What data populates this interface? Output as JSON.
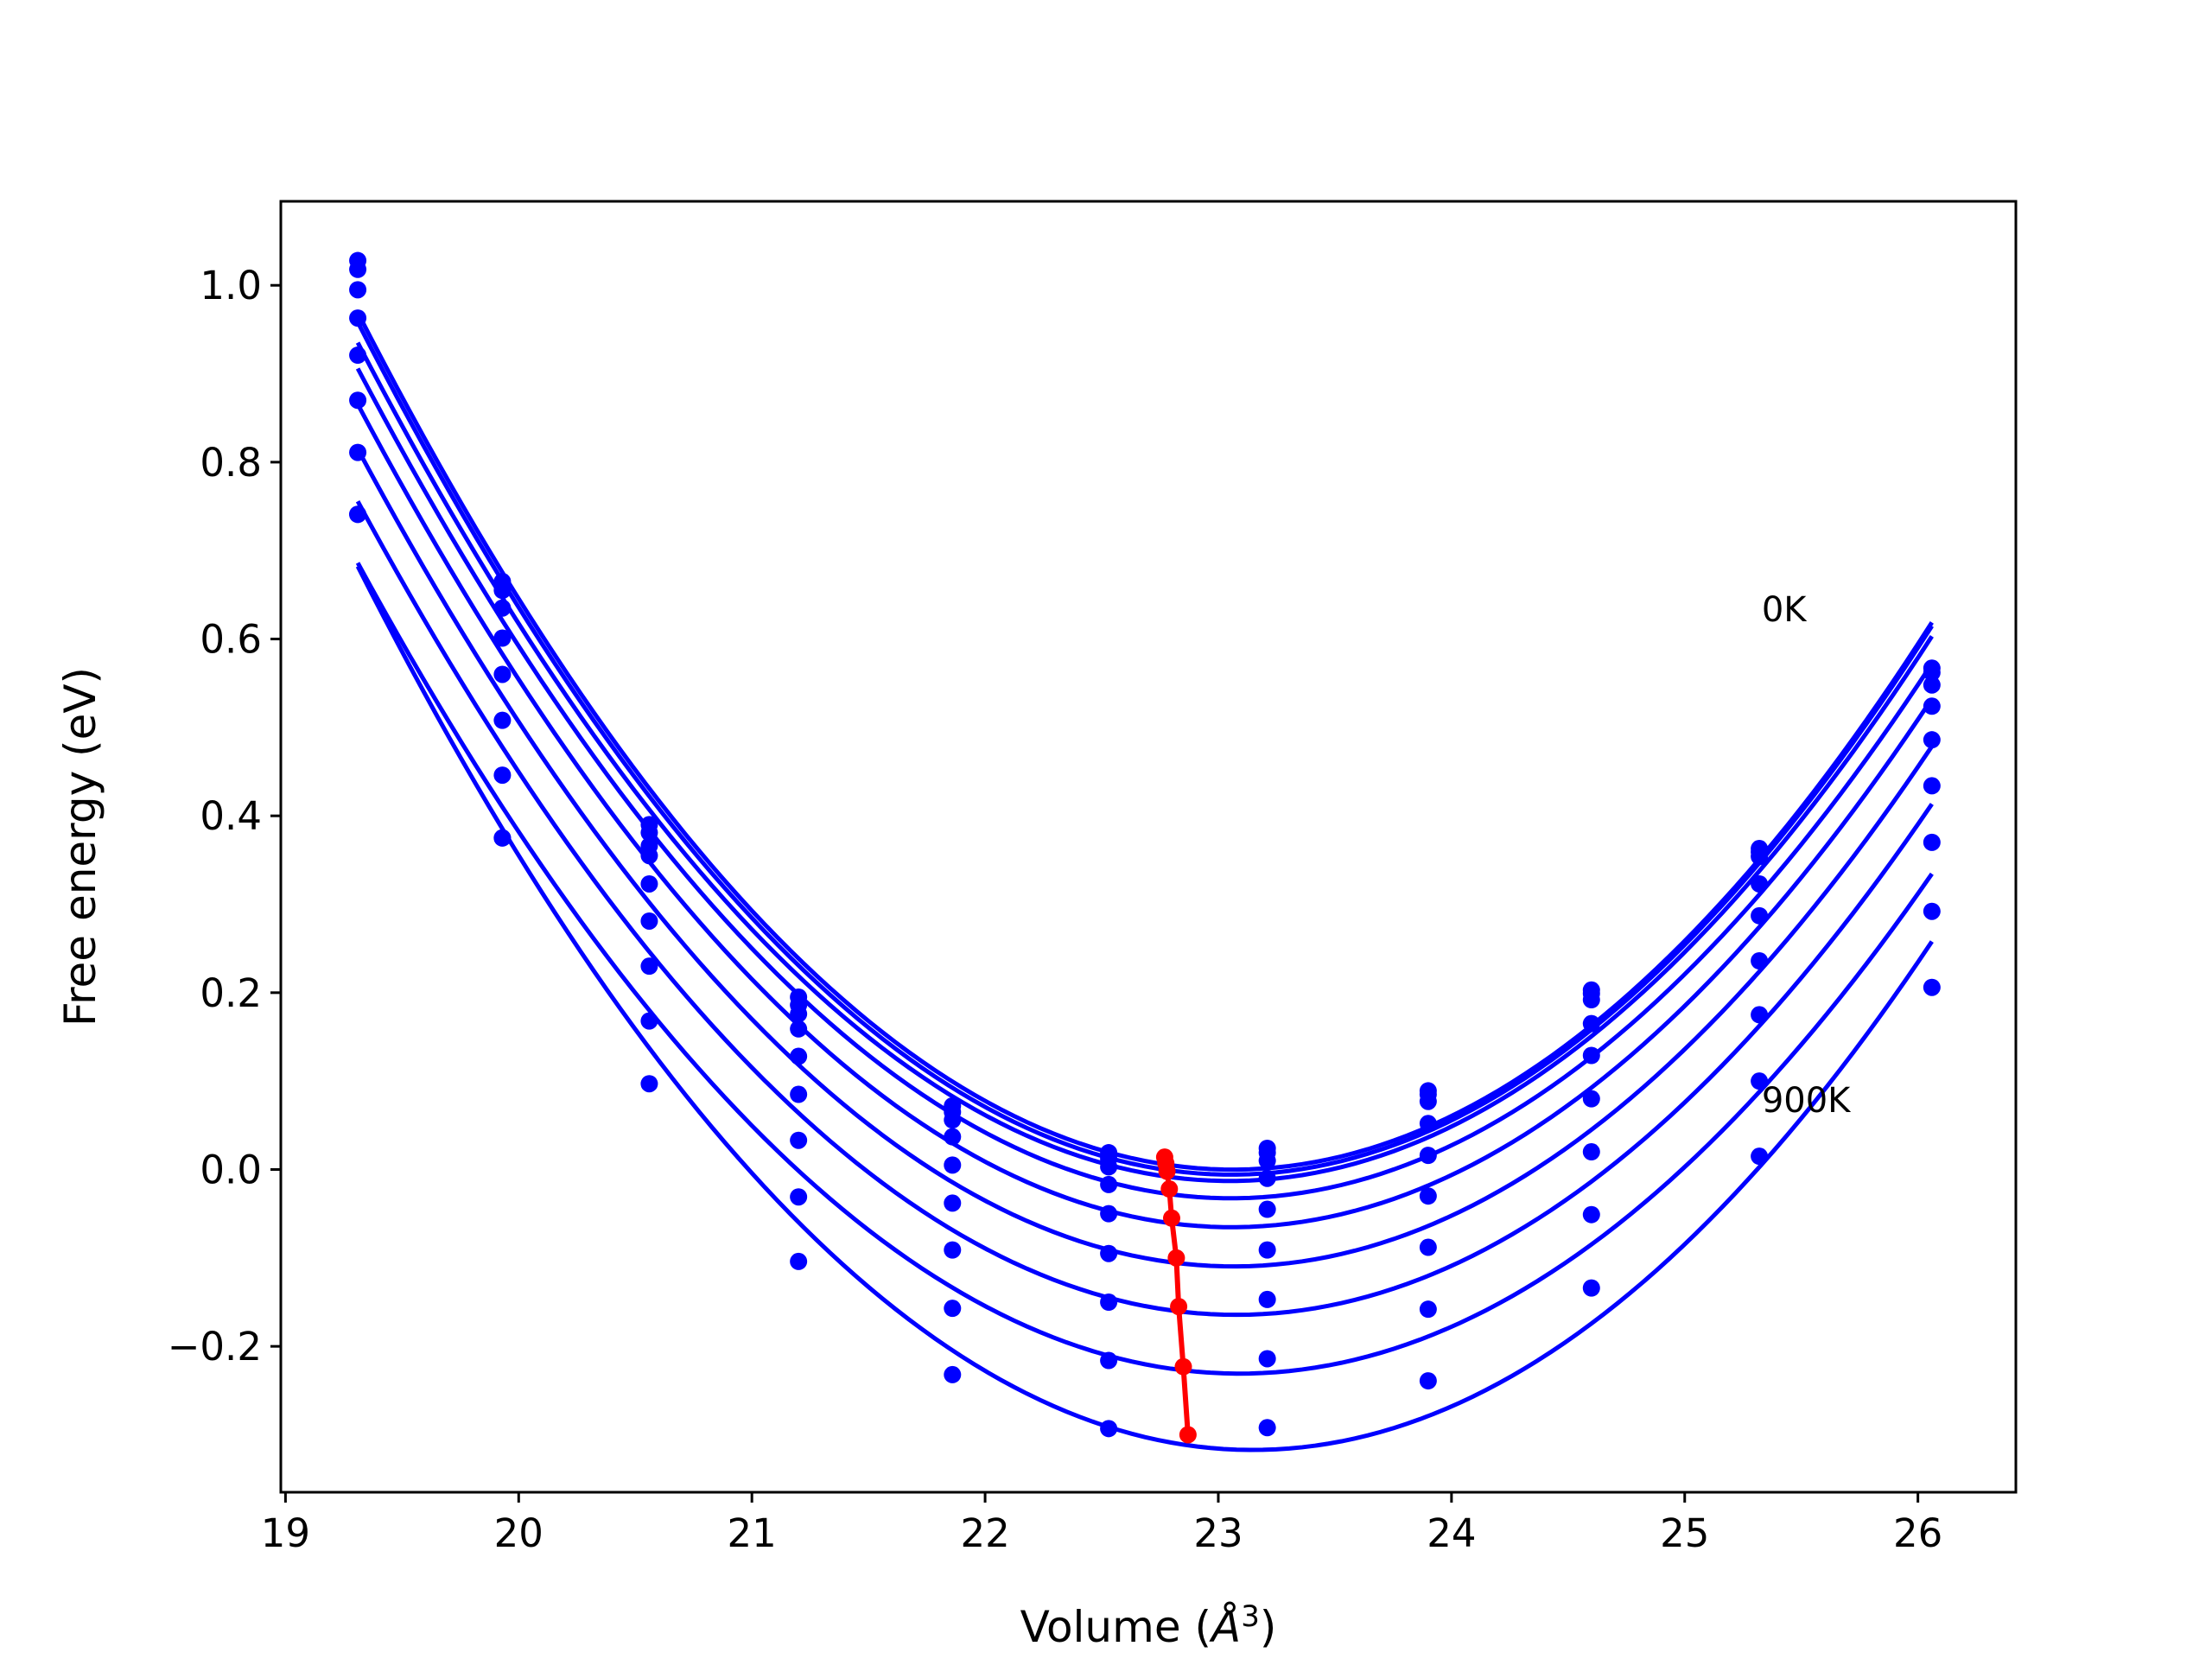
{
  "chart_data": {
    "type": "line",
    "xlabel": "Volume (Å³)",
    "xlabel_parts": {
      "prefix": "Volume (",
      "symbol": "Å",
      "sup": "3",
      "suffix": ")"
    },
    "ylabel": "Free energy (eV)",
    "xlim": [
      18.98,
      26.42
    ],
    "ylim": [
      -0.365,
      1.095
    ],
    "xticks": [
      19,
      20,
      21,
      22,
      23,
      24,
      25,
      26
    ],
    "xtick_labels": [
      "19",
      "20",
      "21",
      "22",
      "23",
      "24",
      "25",
      "26"
    ],
    "yticks": [
      -0.2,
      0.0,
      0.2,
      0.4,
      0.6,
      0.8,
      1.0
    ],
    "ytick_labels": [
      "−0.2",
      "0.0",
      "0.2",
      "0.4",
      "0.6",
      "0.8",
      "1.0"
    ],
    "grid": false,
    "legend": "none",
    "x": [
      19.31,
      19.93,
      20.56,
      21.2,
      21.86,
      22.53,
      23.21,
      23.9,
      24.6,
      25.32,
      26.06
    ],
    "series": [
      {
        "color": "#0000ff",
        "values": [
          1.028,
          0.665,
          0.39,
          0.195,
          0.072,
          0.019,
          0.024,
          0.089,
          0.203,
          0.363,
          0.567
        ]
      },
      {
        "color": "#0000ff",
        "values": [
          1.018,
          0.655,
          0.381,
          0.186,
          0.065,
          0.012,
          0.019,
          0.085,
          0.199,
          0.359,
          0.562
        ]
      },
      {
        "color": "#0000ff",
        "values": [
          0.995,
          0.635,
          0.366,
          0.176,
          0.056,
          0.003,
          0.01,
          0.077,
          0.192,
          0.354,
          0.548
        ]
      },
      {
        "color": "#0000ff",
        "values": [
          0.963,
          0.601,
          0.355,
          0.159,
          0.037,
          -0.017,
          -0.01,
          0.052,
          0.165,
          0.323,
          0.524
        ]
      },
      {
        "color": "#0000ff",
        "values": [
          0.921,
          0.56,
          0.323,
          0.128,
          0.005,
          -0.05,
          -0.045,
          0.016,
          0.129,
          0.287,
          0.486
        ]
      },
      {
        "color": "#0000ff",
        "values": [
          0.87,
          0.508,
          0.281,
          0.085,
          -0.038,
          -0.095,
          -0.091,
          -0.03,
          0.08,
          0.236,
          0.434
        ]
      },
      {
        "color": "#0000ff",
        "values": [
          0.811,
          0.446,
          0.23,
          0.033,
          -0.091,
          -0.15,
          -0.147,
          -0.088,
          0.02,
          0.175,
          0.37
        ]
      },
      {
        "color": "#0000ff",
        "values": [
          0.741,
          0.375,
          0.168,
          -0.031,
          -0.157,
          -0.216,
          -0.214,
          -0.158,
          -0.051,
          0.1,
          0.292
        ]
      },
      {
        "color": "#0000ff",
        "values": [
          0.741,
          0.375,
          0.097,
          -0.104,
          -0.232,
          -0.293,
          -0.292,
          -0.239,
          -0.134,
          0.015,
          0.206
        ]
      }
    ],
    "minima": {
      "color": "#ff0000",
      "x": [
        22.77,
        22.775,
        22.78,
        22.79,
        22.8,
        22.82,
        22.83,
        22.85,
        22.87
      ],
      "y": [
        0.014,
        0.007,
        -0.002,
        -0.022,
        -0.055,
        -0.1,
        -0.155,
        -0.223,
        -0.3
      ]
    },
    "annotations": [
      {
        "text": "0K",
        "x": 25.33,
        "y": 0.62
      },
      {
        "text": "900K",
        "x": 25.33,
        "y": 0.065
      }
    ]
  }
}
